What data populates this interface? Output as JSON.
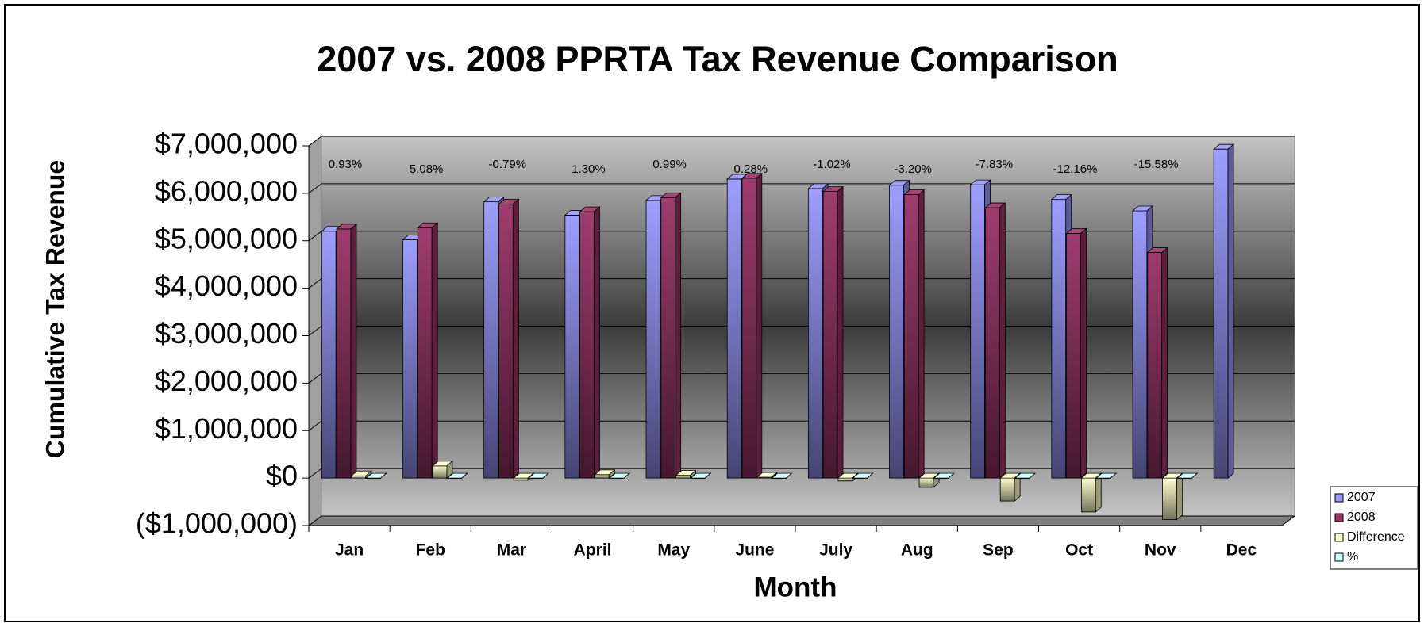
{
  "chart_data": {
    "type": "bar3d",
    "title": "2007 vs. 2008 PPRTA Tax Revenue Comparison",
    "y_label": "Cumulative Tax Revenue",
    "x_label": "Month",
    "categories": [
      "Jan",
      "Feb",
      "Mar",
      "April",
      "May",
      "June",
      "July",
      "Aug",
      "Sep",
      "Oct",
      "Nov",
      "Dec"
    ],
    "series": [
      {
        "name": "2007",
        "color": "#9999ff",
        "values": [
          5200000,
          5020000,
          5820000,
          5540000,
          5850000,
          6300000,
          6100000,
          6170000,
          6180000,
          5870000,
          5630000,
          6930000
        ]
      },
      {
        "name": "2008",
        "color": "#993366",
        "values": [
          5248000,
          5275000,
          5774000,
          5612000,
          5908000,
          6318000,
          6038000,
          5973000,
          5696000,
          5156000,
          4753000,
          null
        ]
      },
      {
        "name": "Difference",
        "color": "#ffffcc",
        "values": [
          48000,
          255000,
          -46000,
          72000,
          58000,
          18000,
          -62000,
          -197000,
          -484000,
          -714000,
          -877000,
          null
        ]
      },
      {
        "name": "%",
        "color": "#ccffff",
        "values": [
          0.93,
          5.08,
          -0.79,
          1.3,
          0.99,
          0.28,
          -1.02,
          -3.2,
          -7.83,
          -12.16,
          -15.58,
          null
        ],
        "value_labels": [
          "0.93%",
          "5.08%",
          "-0.79%",
          "1.30%",
          "0.99%",
          "0.28%",
          "-1.02%",
          "-3.20%",
          "-7.83%",
          "-12.16%",
          "-15.58%",
          null
        ]
      }
    ],
    "ylim": [
      -1000000,
      7000000
    ],
    "yticks": [
      {
        "value": -1000000,
        "label": "($1,000,000)"
      },
      {
        "value": 0,
        "label": "$0"
      },
      {
        "value": 1000000,
        "label": "$1,000,000"
      },
      {
        "value": 2000000,
        "label": "$2,000,000"
      },
      {
        "value": 3000000,
        "label": "$3,000,000"
      },
      {
        "value": 4000000,
        "label": "$4,000,000"
      },
      {
        "value": 5000000,
        "label": "$5,000,000"
      },
      {
        "value": 6000000,
        "label": "$6,000,000"
      },
      {
        "value": 7000000,
        "label": "$7,000,000"
      }
    ],
    "grid": true,
    "legend": "right"
  }
}
